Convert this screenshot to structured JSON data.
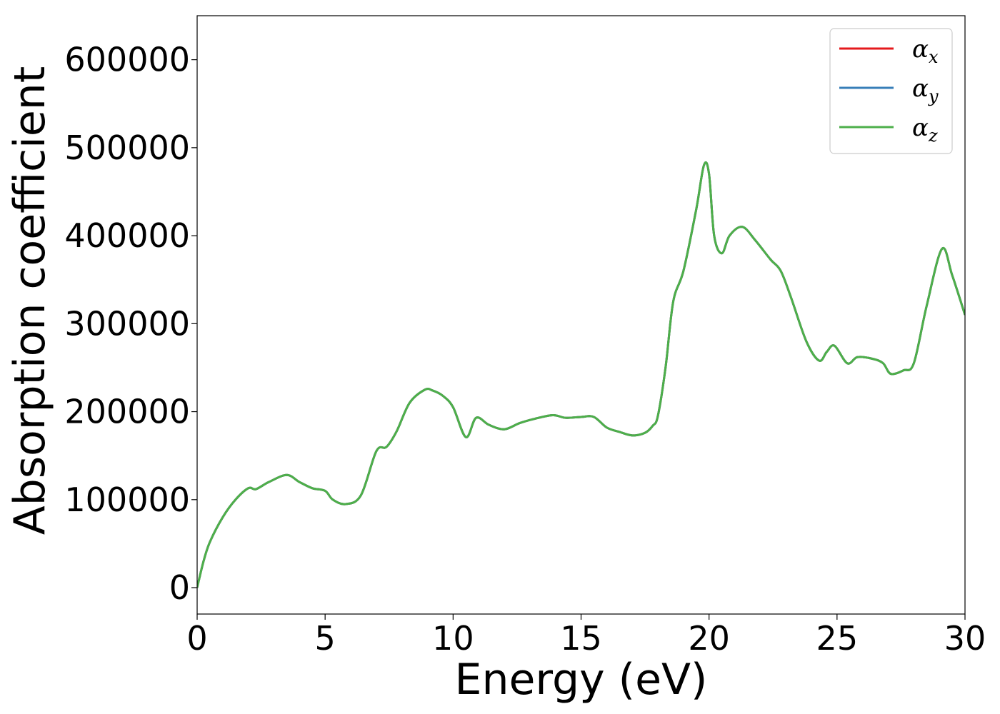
{
  "chart_data": {
    "type": "line",
    "xlabel": "Energy (eV)",
    "ylabel": "Absorption coefficient",
    "xlim": [
      0,
      30
    ],
    "ylim": [
      -30000,
      650000
    ],
    "grid": false,
    "legend_position": "top-right",
    "x_ticks": [
      {
        "value": 0,
        "label": "0"
      },
      {
        "value": 5,
        "label": "5"
      },
      {
        "value": 10,
        "label": "10"
      },
      {
        "value": 15,
        "label": "15"
      },
      {
        "value": 20,
        "label": "20"
      },
      {
        "value": 25,
        "label": "25"
      },
      {
        "value": 30,
        "label": "30"
      }
    ],
    "y_ticks": [
      {
        "value": 0,
        "label": "0"
      },
      {
        "value": 100000,
        "label": "100000"
      },
      {
        "value": 200000,
        "label": "200000"
      },
      {
        "value": 300000,
        "label": "300000"
      },
      {
        "value": 400000,
        "label": "400000"
      },
      {
        "value": 500000,
        "label": "500000"
      },
      {
        "value": 600000,
        "label": "600000"
      }
    ],
    "x": [
      0,
      0.25,
      0.5,
      1,
      1.5,
      2,
      2.3,
      2.8,
      3.5,
      4,
      4.5,
      5,
      5.3,
      5.8,
      6.4,
      7,
      7.4,
      7.8,
      8.3,
      8.9,
      9.2,
      9.6,
      10,
      10.5,
      10.9,
      11.4,
      12,
      12.6,
      13.2,
      13.9,
      14.4,
      15,
      15.5,
      16,
      16.5,
      17,
      17.5,
      17.8,
      18,
      18.3,
      18.6,
      19,
      19.5,
      19.8,
      20,
      20.2,
      20.5,
      20.8,
      21.3,
      21.8,
      22.4,
      22.8,
      23.2,
      23.8,
      24.3,
      24.6,
      24.9,
      25.4,
      25.8,
      26.4,
      26.8,
      27.1,
      27.6,
      28,
      28.5,
      29.1,
      29.5,
      30
    ],
    "series": [
      {
        "name": "α_x",
        "label_base": "α",
        "label_sub": "x",
        "color": "#e41a1c",
        "values": [
          0,
          30000,
          52000,
          80000,
          100000,
          113000,
          112000,
          120000,
          128000,
          120000,
          113000,
          110000,
          100000,
          95000,
          105000,
          155000,
          160000,
          178000,
          210000,
          225000,
          224000,
          218000,
          205000,
          171000,
          193000,
          185000,
          180000,
          187000,
          192000,
          196000,
          193000,
          194000,
          194000,
          182000,
          177000,
          173000,
          176000,
          184000,
          195000,
          250000,
          325000,
          360000,
          430000,
          480000,
          470000,
          400000,
          380000,
          400000,
          410000,
          395000,
          373000,
          360000,
          330000,
          280000,
          258000,
          268000,
          275000,
          255000,
          262000,
          260000,
          255000,
          243000,
          247000,
          255000,
          320000,
          385000,
          355000,
          310000
        ]
      },
      {
        "name": "α_y",
        "label_base": "α",
        "label_sub": "y",
        "color": "#377eb8",
        "values": [
          0,
          30000,
          52000,
          80000,
          100000,
          113000,
          112000,
          120000,
          128000,
          120000,
          113000,
          110000,
          100000,
          95000,
          105000,
          155000,
          160000,
          178000,
          210000,
          225000,
          224000,
          218000,
          205000,
          171000,
          193000,
          185000,
          180000,
          187000,
          192000,
          196000,
          193000,
          194000,
          194000,
          182000,
          177000,
          173000,
          176000,
          184000,
          195000,
          250000,
          325000,
          360000,
          430000,
          480000,
          470000,
          400000,
          380000,
          400000,
          410000,
          395000,
          373000,
          360000,
          330000,
          280000,
          258000,
          268000,
          275000,
          255000,
          262000,
          260000,
          255000,
          243000,
          247000,
          255000,
          320000,
          385000,
          355000,
          310000
        ]
      },
      {
        "name": "α_z",
        "label_base": "α",
        "label_sub": "z",
        "color": "#4daf4a",
        "values": [
          0,
          30000,
          52000,
          80000,
          100000,
          113000,
          112000,
          120000,
          128000,
          120000,
          113000,
          110000,
          100000,
          95000,
          105000,
          155000,
          160000,
          178000,
          210000,
          225000,
          224000,
          218000,
          205000,
          171000,
          193000,
          185000,
          180000,
          187000,
          192000,
          196000,
          193000,
          194000,
          194000,
          182000,
          177000,
          173000,
          176000,
          184000,
          195000,
          250000,
          325000,
          360000,
          430000,
          480000,
          470000,
          400000,
          380000,
          400000,
          410000,
          395000,
          373000,
          360000,
          330000,
          280000,
          258000,
          268000,
          275000,
          255000,
          262000,
          260000,
          255000,
          243000,
          247000,
          255000,
          320000,
          385000,
          355000,
          310000
        ]
      }
    ]
  }
}
